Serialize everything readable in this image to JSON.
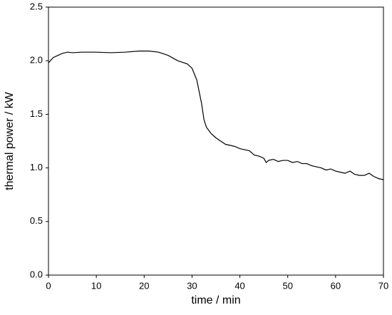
{
  "chart_data": {
    "type": "line",
    "x_label": "time / min",
    "y_label": "thermal power / kW",
    "xlim": [
      0,
      70
    ],
    "xticks": [
      0,
      10,
      20,
      30,
      40,
      50,
      60,
      70
    ],
    "ylim": [
      0,
      2.5
    ],
    "yticks": [
      {
        "value": 0,
        "label": "0.0"
      },
      0.5,
      {
        "value": 1,
        "label": "1.0"
      },
      1.5,
      {
        "value": 2,
        "label": "2.0"
      },
      2.5
    ],
    "x": [
      0,
      1,
      2,
      3,
      4,
      5,
      7,
      10,
      13,
      16,
      19,
      21,
      23,
      25,
      27,
      29,
      30,
      31,
      32,
      32.5,
      33,
      34,
      35,
      36,
      37,
      38,
      39,
      40,
      41,
      42,
      43,
      44,
      45,
      45.5,
      46,
      47,
      48,
      49,
      50,
      51,
      52,
      53,
      54,
      55,
      56,
      57,
      58,
      59,
      60,
      61,
      62,
      63,
      64,
      65,
      66,
      67,
      68,
      69,
      70
    ],
    "series": [
      {
        "color": "#000000",
        "values": [
          1.98,
          2.03,
          2.05,
          2.07,
          2.08,
          2.075,
          2.08,
          2.08,
          2.075,
          2.08,
          2.09,
          2.09,
          2.08,
          2.05,
          2.0,
          1.97,
          1.93,
          1.82,
          1.6,
          1.45,
          1.38,
          1.32,
          1.28,
          1.25,
          1.22,
          1.21,
          1.2,
          1.18,
          1.17,
          1.16,
          1.12,
          1.11,
          1.09,
          1.05,
          1.07,
          1.08,
          1.06,
          1.07,
          1.07,
          1.05,
          1.06,
          1.04,
          1.04,
          1.02,
          1.01,
          1.0,
          0.98,
          0.99,
          0.97,
          0.96,
          0.95,
          0.97,
          0.94,
          0.93,
          0.93,
          0.95,
          0.92,
          0.9,
          0.89
        ]
      }
    ]
  }
}
